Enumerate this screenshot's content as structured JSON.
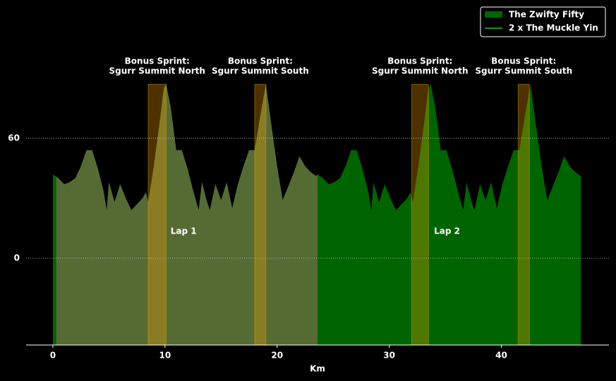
{
  "chart_data": {
    "type": "area",
    "x_label": "Km",
    "x": [
      0,
      0.5,
      1,
      1.5,
      2,
      2.5,
      3,
      3.5,
      4,
      4.5,
      4.8,
      5,
      5.5,
      6,
      6.5,
      7,
      7.5,
      8,
      8.3,
      8.5,
      9,
      9.5,
      9.9,
      10.1,
      10.5,
      11,
      11.5,
      12,
      12.5,
      13,
      13.3,
      13.7,
      14,
      14.5,
      15,
      15.5,
      16,
      16.5,
      17,
      17.5,
      18,
      18.5,
      19,
      19.5,
      20,
      20.5,
      21,
      21.5,
      22,
      22.5,
      23,
      23.5,
      23.6,
      24.1,
      24.6,
      25.1,
      25.6,
      26.1,
      26.6,
      27.1,
      27.6,
      28.1,
      28.4,
      28.6,
      29.1,
      29.6,
      30.1,
      30.6,
      31.1,
      31.6,
      31.9,
      32.1,
      32.6,
      33.1,
      33.5,
      33.7,
      34.1,
      34.6,
      35.1,
      35.6,
      36.1,
      36.6,
      36.9,
      37.3,
      37.6,
      38.1,
      38.6,
      39.1,
      39.6,
      40.1,
      40.6,
      41.1,
      41.6,
      42.1,
      42.6,
      43.1,
      43.6,
      44.1,
      44.6,
      45.1,
      45.6,
      46.1,
      46.6,
      47.1
    ],
    "series": [
      {
        "name": "The Zwifty Fifty",
        "color": "#006400",
        "values": [
          42,
          40,
          37,
          38,
          40,
          46,
          54,
          54,
          45,
          34,
          24,
          38,
          28,
          37,
          30,
          24,
          27,
          30,
          33,
          28,
          46,
          67,
          85,
          87,
          76,
          54,
          54,
          45,
          34,
          24,
          38,
          29,
          24,
          37,
          29,
          38,
          25,
          37,
          46,
          54,
          54,
          71,
          87,
          66,
          46,
          29,
          36,
          43,
          51,
          46,
          43,
          41,
          42,
          40,
          37,
          38,
          40,
          46,
          54,
          54,
          45,
          34,
          24,
          38,
          28,
          37,
          30,
          24,
          27,
          30,
          33,
          28,
          46,
          67,
          85,
          87,
          76,
          54,
          54,
          45,
          34,
          24,
          38,
          29,
          24,
          37,
          29,
          38,
          25,
          37,
          46,
          54,
          54,
          71,
          87,
          66,
          46,
          29,
          36,
          43,
          51,
          46,
          43,
          41
        ]
      },
      {
        "name": "2 x The Muckle Yin",
        "color": "#228b22",
        "fill": "#566b34",
        "span": [
          0.3,
          23.6
        ]
      }
    ],
    "sprints": {
      "color": "#ffa500",
      "top": 87,
      "items": [
        {
          "xrange": [
            8.5,
            10.1
          ],
          "label": [
            "Bonus Sprint:",
            "Sgurr Summit North"
          ]
        },
        {
          "xrange": [
            18.0,
            19.0
          ],
          "label": [
            "Bonus Sprint:",
            "Sgurr Summit South"
          ]
        },
        {
          "xrange": [
            32.0,
            33.5
          ],
          "label": [
            "Bonus Sprint:",
            "Sgurr Summit North"
          ]
        },
        {
          "xrange": [
            41.5,
            42.5
          ],
          "label": [
            "Bonus Sprint:",
            "Sgurr Summit South"
          ]
        }
      ]
    },
    "annotations": [
      {
        "text": "Lap 1",
        "x": 10.5,
        "y": 13.4
      },
      {
        "text": "Lap 2",
        "x": 34.0,
        "y": 13.4
      }
    ],
    "xlim": [
      -2.39,
      49.6
    ],
    "ylim": [
      -43.4,
      125.6
    ],
    "xticks": [
      0,
      10,
      20,
      30,
      40
    ],
    "yticks": [
      0,
      60
    ],
    "grid": true,
    "legend": "upper right"
  }
}
